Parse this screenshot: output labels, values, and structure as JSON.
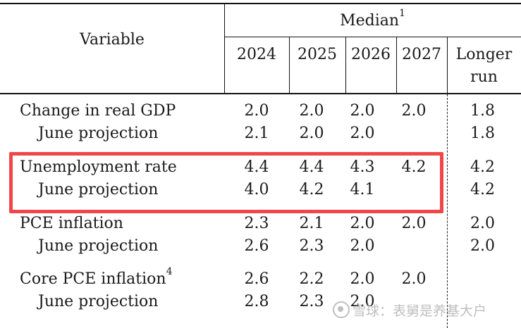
{
  "header": {
    "variable": "Variable",
    "median": "Median",
    "median_note": "1",
    "years": [
      "2024",
      "2025",
      "2026",
      "2027"
    ],
    "longer_run_1": "Longer",
    "longer_run_2": "run"
  },
  "rows": [
    {
      "label": "Change in real GDP",
      "note": "",
      "values": [
        "2.0",
        "2.0",
        "2.0",
        "2.0"
      ],
      "longer": "1.8"
    },
    {
      "label": "June projection",
      "note": "",
      "values": [
        "2.1",
        "2.0",
        "2.0",
        ""
      ],
      "longer": "1.8"
    },
    {
      "label": "Unemployment rate",
      "note": "",
      "values": [
        "4.4",
        "4.4",
        "4.3",
        "4.2"
      ],
      "longer": "4.2"
    },
    {
      "label": "June projection",
      "note": "",
      "values": [
        "4.0",
        "4.2",
        "4.1",
        ""
      ],
      "longer": "4.2"
    },
    {
      "label": "PCE inflation",
      "note": "",
      "values": [
        "2.3",
        "2.1",
        "2.0",
        "2.0"
      ],
      "longer": "2.0"
    },
    {
      "label": "June projection",
      "note": "",
      "values": [
        "2.6",
        "2.3",
        "2.0",
        ""
      ],
      "longer": "2.0"
    },
    {
      "label": "Core PCE inflation",
      "note": "4",
      "values": [
        "2.6",
        "2.2",
        "2.0",
        "2.0"
      ],
      "longer": ""
    },
    {
      "label": "June projection",
      "note": "",
      "values": [
        "2.8",
        "2.3",
        "2.0",
        ""
      ],
      "longer": ""
    }
  ],
  "watermark": "雪球：表舅是养基大户",
  "highlight_color": "#f0464a"
}
